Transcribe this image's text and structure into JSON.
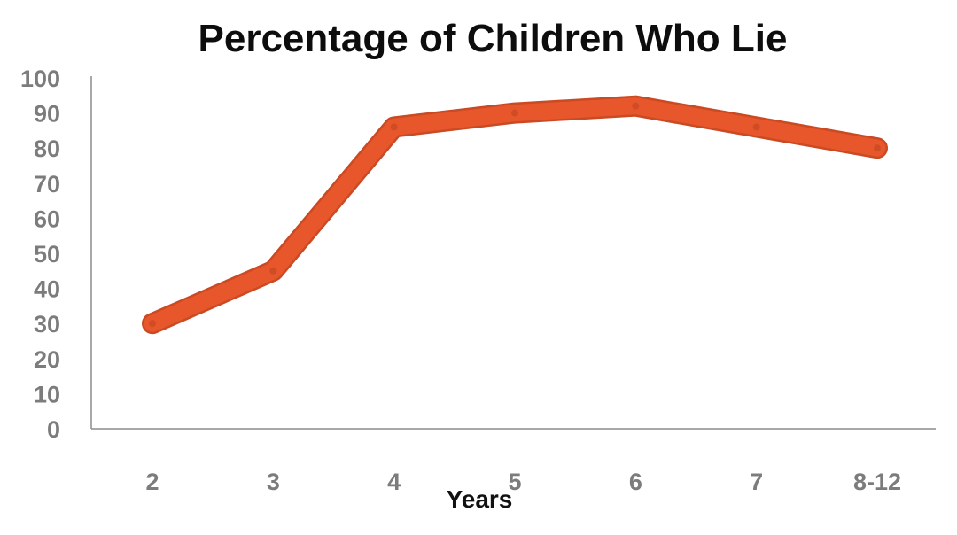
{
  "chart_data": {
    "type": "line",
    "title": "Percentage of Children Who Lie",
    "xlabel": "Years",
    "ylabel": "",
    "categories": [
      "2",
      "3",
      "4",
      "5",
      "6",
      "7",
      "8-12"
    ],
    "series": [
      {
        "values": [
          30,
          45,
          86,
          90,
          92,
          86,
          80
        ],
        "color": "#e8562b"
      }
    ],
    "ylim": [
      0,
      100
    ],
    "yticks": [
      0,
      10,
      20,
      30,
      40,
      50,
      60,
      70,
      80,
      90,
      100
    ],
    "grid": false,
    "legend": "none"
  },
  "colors": {
    "background": "#ffffff",
    "line": "#e8562b",
    "line_outline": "#c94a23",
    "axis": "#8c8c8c",
    "tick_label": "#7c7c7c",
    "title": "#0d0d0d"
  }
}
